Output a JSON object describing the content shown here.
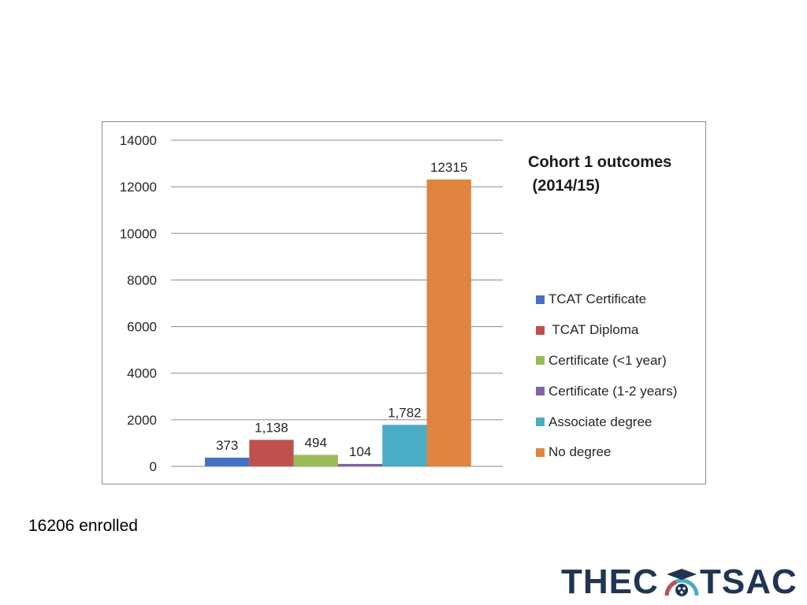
{
  "chart_data": {
    "type": "bar",
    "title_lines": [
      "Cohort 1 outcomes",
      " (2014/15)"
    ],
    "xlabel": "",
    "ylabel": "",
    "ylim": [
      0,
      14000
    ],
    "yticks": [
      0,
      2000,
      4000,
      6000,
      8000,
      10000,
      12000,
      14000
    ],
    "grid": true,
    "legend_position": "right",
    "series": [
      {
        "name": "TCAT Certificate",
        "values": [
          373
        ],
        "data_label": "373",
        "color": "#4472c4"
      },
      {
        "name": " TCAT Diploma",
        "values": [
          1138
        ],
        "data_label": "1,138",
        "color": "#c0504d"
      },
      {
        "name": "Certificate (<1 year)",
        "values": [
          494
        ],
        "data_label": "494",
        "color": "#9bbb59"
      },
      {
        "name": "Certificate (1-2 years)",
        "values": [
          104
        ],
        "data_label": "104",
        "color": "#8064a2"
      },
      {
        "name": "Associate degree",
        "values": [
          1782
        ],
        "data_label": "1,782",
        "color": "#4bacc6"
      },
      {
        "name": "No degree",
        "values": [
          12315
        ],
        "data_label": "12315",
        "color": "#e0853f"
      }
    ]
  },
  "footnote": "16206 enrolled",
  "logo": {
    "left_text": "THEC",
    "right_text": "TSAC",
    "text_color": "#1f3552",
    "accent_colors": [
      "#c0504d",
      "#4bacc6",
      "#1f3552"
    ]
  }
}
